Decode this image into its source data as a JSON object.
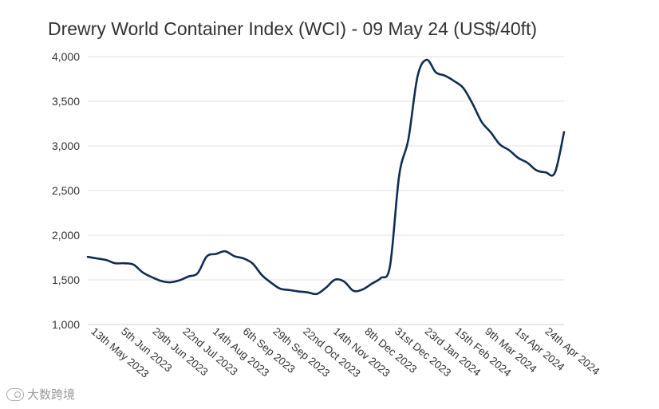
{
  "chart_data": {
    "type": "line",
    "title": "Drewry World Container Index (WCI) - 09 May 24 (US$/40ft)",
    "xlabel": "",
    "ylabel": "",
    "ylim": [
      1000,
      4000
    ],
    "yticks": [
      {
        "value": 1000,
        "label": "1,000"
      },
      {
        "value": 1500,
        "label": "1,500"
      },
      {
        "value": 2000,
        "label": "2,000"
      },
      {
        "value": 2500,
        "label": "2,500"
      },
      {
        "value": 3000,
        "label": "3,000"
      },
      {
        "value": 3500,
        "label": "3,500"
      },
      {
        "value": 4000,
        "label": "4,000"
      }
    ],
    "grid": true,
    "legend": "none",
    "line_color": "#0f2d52",
    "xticks": [
      {
        "x": "2023-05-13",
        "label": "13th May 2023"
      },
      {
        "x": "2023-06-05",
        "label": "5th Jun 2023"
      },
      {
        "x": "2023-06-29",
        "label": "29th Jun 2023"
      },
      {
        "x": "2023-07-22",
        "label": "22nd Jul 2023"
      },
      {
        "x": "2023-08-14",
        "label": "14th Aug 2023"
      },
      {
        "x": "2023-09-06",
        "label": "6th Sep 2023"
      },
      {
        "x": "2023-09-29",
        "label": "29th Sep 2023"
      },
      {
        "x": "2023-10-22",
        "label": "22nd Oct 2023"
      },
      {
        "x": "2023-11-14",
        "label": "14th Nov 2023"
      },
      {
        "x": "2023-12-08",
        "label": "8th Dec 2023"
      },
      {
        "x": "2023-12-31",
        "label": "31st Dec 2023"
      },
      {
        "x": "2024-01-23",
        "label": "23rd Jan 2024"
      },
      {
        "x": "2024-02-15",
        "label": "15th Feb 2024"
      },
      {
        "x": "2024-03-09",
        "label": "9th Mar 2024"
      },
      {
        "x": "2024-04-01",
        "label": "1st Apr 2024"
      },
      {
        "x": "2024-04-24",
        "label": "24th Apr 2024"
      }
    ],
    "series": [
      {
        "x": [
          "2023-05-11",
          "2023-05-18",
          "2023-05-25",
          "2023-06-01",
          "2023-06-08",
          "2023-06-15",
          "2023-06-22",
          "2023-06-29",
          "2023-07-06",
          "2023-07-13",
          "2023-07-20",
          "2023-07-27",
          "2023-08-03",
          "2023-08-10",
          "2023-08-17",
          "2023-08-24",
          "2023-08-31",
          "2023-09-07",
          "2023-09-14",
          "2023-09-21",
          "2023-09-28",
          "2023-10-05",
          "2023-10-12",
          "2023-10-19",
          "2023-10-26",
          "2023-11-02",
          "2023-11-09",
          "2023-11-16",
          "2023-11-23",
          "2023-11-30",
          "2023-12-07",
          "2023-12-14",
          "2023-12-21",
          "2023-12-28",
          "2024-01-04",
          "2024-01-11",
          "2024-01-18",
          "2024-01-25",
          "2024-02-01",
          "2024-02-08",
          "2024-02-15",
          "2024-02-22",
          "2024-02-29",
          "2024-03-07",
          "2024-03-14",
          "2024-03-21",
          "2024-03-28",
          "2024-04-04",
          "2024-04-11",
          "2024-04-18",
          "2024-04-25",
          "2024-05-02",
          "2024-05-09"
        ],
        "values": [
          1757,
          1740,
          1722,
          1686,
          1686,
          1670,
          1583,
          1530,
          1488,
          1473,
          1494,
          1538,
          1575,
          1763,
          1790,
          1820,
          1765,
          1740,
          1683,
          1554,
          1469,
          1401,
          1386,
          1370,
          1360,
          1342,
          1412,
          1502,
          1480,
          1378,
          1392,
          1456,
          1521,
          1656,
          2670,
          3072,
          3777,
          3964,
          3824,
          3786,
          3726,
          3648,
          3474,
          3270,
          3151,
          3016,
          2952,
          2865,
          2811,
          2726,
          2704,
          2700,
          3155
        ]
      }
    ]
  },
  "watermark": {
    "text": "大数跨境"
  }
}
